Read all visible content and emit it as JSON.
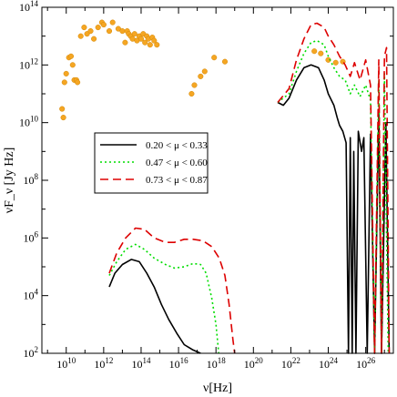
{
  "chart_data": {
    "type": "scatter",
    "title": "",
    "xlabel": "ν[Hz]",
    "ylabel": "νF_ν [Jy Hz]",
    "xscale": "log",
    "yscale": "log",
    "xlim": [
      500000000.0,
      3e+27
    ],
    "ylim": [
      100.0,
      100000000000000.0
    ],
    "grid": false,
    "legend_position": "upper-left inside plot",
    "x_tick_labels": [
      "10^10",
      "10^12",
      "10^14",
      "10^16",
      "10^18",
      "10^20",
      "10^22",
      "10^24",
      "10^26"
    ],
    "y_tick_labels": [
      "10^2",
      "10^4",
      "10^6",
      "10^8",
      "10^10",
      "10^12",
      "10^14"
    ],
    "colors": {
      "observed": "#f5a623",
      "series_1": "#000000",
      "series_2": "#00dd00",
      "series_3": "#dd0000"
    },
    "observed_points": [
      [
        6000000000.0,
        30000000000.0
      ],
      [
        7000000000.0,
        15000000000.0
      ],
      [
        8000000000.0,
        250000000000.0
      ],
      [
        10000000000.0,
        500000000000.0
      ],
      [
        14000000000.0,
        1800000000000.0
      ],
      [
        18000000000.0,
        2000000000000.0
      ],
      [
        22000000000.0,
        1000000000000.0
      ],
      [
        27000000000.0,
        300000000000.0
      ],
      [
        35000000000.0,
        300000000000.0
      ],
      [
        40000000000.0,
        250000000000.0
      ],
      [
        60000000000.0,
        10000000000000.0
      ],
      [
        90000000000.0,
        20000000000000.0
      ],
      [
        130000000000.0,
        12000000000000.0
      ],
      [
        200000000000.0,
        15000000000000.0
      ],
      [
        300000000000.0,
        8000000000000.0
      ],
      [
        500000000000.0,
        20000000000000.0
      ],
      [
        800000000000.0,
        30000000000000.0
      ],
      [
        1000000000000.0,
        25000000000000.0
      ],
      [
        2000000000000.0,
        15000000000000.0
      ],
      [
        3000000000000.0,
        30000000000000.0
      ],
      [
        6000000000000.0,
        18000000000000.0
      ],
      [
        10000000000000.0,
        15000000000000.0
      ],
      [
        14000000000000.0,
        6000000000000.0
      ],
      [
        18000000000000.0,
        15000000000000.0
      ],
      [
        22000000000000.0,
        12000000000000.0
      ],
      [
        28000000000000.0,
        10000000000000.0
      ],
      [
        35000000000000.0,
        8000000000000.0
      ],
      [
        45000000000000.0,
        12000000000000.0
      ],
      [
        60000000000000.0,
        7000000000000.0
      ],
      [
        80000000000000.0,
        10000000000000.0
      ],
      [
        100000000000000.0,
        8000000000000.0
      ],
      [
        130000000000000.0,
        12000000000000.0
      ],
      [
        160000000000000.0,
        6000000000000.0
      ],
      [
        200000000000000.0,
        10000000000000.0
      ],
      [
        250000000000000.0,
        8000000000000.0
      ],
      [
        300000000000000.0,
        5000000000000.0
      ],
      [
        400000000000000.0,
        9000000000000.0
      ],
      [
        500000000000000.0,
        7000000000000.0
      ],
      [
        700000000000000.0,
        5000000000000.0
      ],
      [
        5e+16,
        100000000000.0
      ],
      [
        7e+16,
        200000000000.0
      ],
      [
        1.5e+17,
        400000000000.0
      ],
      [
        2.5e+17,
        600000000000.0
      ],
      [
        8e+17,
        1800000000000.0
      ],
      [
        3e+18,
        1300000000000.0
      ],
      [
        1.8e+23,
        3000000000000.0
      ],
      [
        4e+23,
        2500000000000.0
      ],
      [
        1e+24,
        1500000000000.0
      ],
      [
        2.5e+24,
        1200000000000.0
      ],
      [
        6e+24,
        1300000000000.0
      ]
    ],
    "series": [
      {
        "name": "0.20 < μ < 0.33",
        "color": "#000000",
        "dash": "solid",
        "segments": [
          [
            [
              2000000000000.0,
              20000.0
            ],
            [
              4000000000000.0,
              60000.0
            ],
            [
              10000000000000.0,
              120000.0
            ],
            [
              30000000000000.0,
              180000.0
            ],
            [
              80000000000000.0,
              150000.0
            ],
            [
              200000000000000.0,
              60000.0
            ],
            [
              500000000000000.0,
              20000.0
            ],
            [
              1200000000000000.0,
              5000.0
            ],
            [
              3000000000000000.0,
              1500.0
            ],
            [
              8000000000000000.0,
              500.0
            ],
            [
              2e+16,
              200.0
            ],
            [
              6e+16,
              130.0
            ],
            [
              1.5e+17,
              100.0
            ]
          ],
          [
            [
              2e+21,
              50000000000.0
            ],
            [
              4e+21,
              40000000000.0
            ],
            [
              8e+21,
              70000000000.0
            ],
            [
              2e+22,
              300000000000.0
            ],
            [
              5e+22,
              800000000000.0
            ],
            [
              1.2e+23,
              1000000000000.0
            ],
            [
              3e+23,
              800000000000.0
            ],
            [
              6e+23,
              300000000000.0
            ],
            [
              1e+24,
              100000000000.0
            ],
            [
              2e+24,
              40000000000.0
            ],
            [
              3e+24,
              15000000000.0
            ],
            [
              4e+24,
              8000000000.0
            ],
            [
              6e+24,
              5000000000.0
            ],
            [
              9e+24,
              2000000000.0
            ],
            [
              1.2e+25,
              100.0
            ],
            [
              1.5e+25,
              3000000000.0
            ],
            [
              1.9e+25,
              100.0
            ],
            [
              2.3e+25,
              1000000000.0
            ],
            [
              3e+25,
              100.0
            ],
            [
              4e+25,
              5000000000.0
            ],
            [
              6e+25,
              1000000000.0
            ],
            [
              8e+25,
              3000000000.0
            ],
            [
              1.2e+26,
              100.0
            ],
            [
              1.8e+26,
              4000000000.0
            ],
            [
              3e+26,
              100.0
            ],
            [
              5e+26,
              20000000000.0
            ],
            [
              7e+26,
              100.0
            ],
            [
              1.2e+27,
              10000000000.0
            ],
            [
              1.8e+27,
              100.0
            ]
          ]
        ]
      },
      {
        "name": "0.47 < μ < 0.60",
        "color": "#00dd00",
        "dash": "dotted",
        "segments": [
          [
            [
              2000000000000.0,
              50000.0
            ],
            [
              5000000000000.0,
              150000.0
            ],
            [
              15000000000000.0,
              400000.0
            ],
            [
              50000000000000.0,
              600000.0
            ],
            [
              150000000000000.0,
              400000.0
            ],
            [
              500000000000000.0,
              200000.0
            ],
            [
              2000000000000000.0,
              120000.0
            ],
            [
              6000000000000000.0,
              90000.0
            ],
            [
              2e+16,
              100000.0
            ],
            [
              6e+16,
              130000.0
            ],
            [
              1.5e+17,
              120000.0
            ],
            [
              3e+17,
              60000.0
            ],
            [
              6e+17,
              8000.0
            ],
            [
              1e+18,
              1000.0
            ],
            [
              1.4e+18,
              100.0
            ]
          ],
          [
            [
              2e+21,
              50000000000.0
            ],
            [
              8e+21,
              100000000000.0
            ],
            [
              2e+22,
              600000000000.0
            ],
            [
              5e+22,
              2500000000000.0
            ],
            [
              1.2e+23,
              6000000000000.0
            ],
            [
              2.5e+23,
              7000000000000.0
            ],
            [
              6e+23,
              5000000000000.0
            ],
            [
              1e+24,
              2000000000000.0
            ],
            [
              2e+24,
              800000000000.0
            ],
            [
              4e+24,
              400000000000.0
            ],
            [
              8e+24,
              300000000000.0
            ],
            [
              1.5e+25,
              100000000000.0
            ],
            [
              2.5e+25,
              200000000000.0
            ],
            [
              5e+25,
              80000000000.0
            ],
            [
              1e+26,
              200000000000.0
            ],
            [
              1.8e+26,
              60000000000.0
            ],
            [
              3e+26,
              100.0
            ],
            [
              5e+26,
              300000000000.0
            ],
            [
              7e+26,
              100.0
            ],
            [
              1e+27,
              500000000000.0
            ],
            [
              1.6e+27,
              100.0
            ]
          ]
        ]
      },
      {
        "name": "0.73 < μ < 0.87",
        "color": "#dd0000",
        "dash": "dashed",
        "segments": [
          [
            [
              2000000000000.0,
              60000.0
            ],
            [
              5000000000000.0,
              300000.0
            ],
            [
              15000000000000.0,
              1000000.0
            ],
            [
              50000000000000.0,
              2200000.0
            ],
            [
              150000000000000.0,
              2000000.0
            ],
            [
              500000000000000.0,
              1000000.0
            ],
            [
              2000000000000000.0,
              700000.0
            ],
            [
              6000000000000000.0,
              700000.0
            ],
            [
              2e+16,
              900000.0
            ],
            [
              6e+16,
              900000.0
            ],
            [
              2e+17,
              800000.0
            ],
            [
              6e+17,
              500000.0
            ],
            [
              1.5e+18,
              200000.0
            ],
            [
              3e+18,
              50000.0
            ],
            [
              5e+18,
              5000.0
            ],
            [
              8e+18,
              300.0
            ],
            [
              1e+19,
              100.0
            ]
          ],
          [
            [
              2e+21,
              50000000000.0
            ],
            [
              8e+21,
              150000000000.0
            ],
            [
              2e+22,
              1500000000000.0
            ],
            [
              5e+22,
              8000000000000.0
            ],
            [
              1.2e+23,
              25000000000000.0
            ],
            [
              2.5e+23,
              28000000000000.0
            ],
            [
              6e+23,
              20000000000000.0
            ],
            [
              1e+24,
              10000000000000.0
            ],
            [
              2e+24,
              5000000000000.0
            ],
            [
              4e+24,
              2000000000000.0
            ],
            [
              8e+24,
              1000000000000.0
            ],
            [
              1.5e+25,
              400000000000.0
            ],
            [
              2.5e+25,
              1200000000000.0
            ],
            [
              5e+25,
              300000000000.0
            ],
            [
              1e+26,
              1500000000000.0
            ],
            [
              1.8e+26,
              200000000000.0
            ],
            [
              3e+26,
              100.0
            ],
            [
              5e+26,
              1500000000000.0
            ],
            [
              7e+26,
              100.0
            ],
            [
              1e+27,
              2000000000000.0
            ],
            [
              1.3e+27,
              4000000000000.0
            ],
            [
              1.8e+27,
              100.0
            ]
          ]
        ]
      }
    ]
  }
}
